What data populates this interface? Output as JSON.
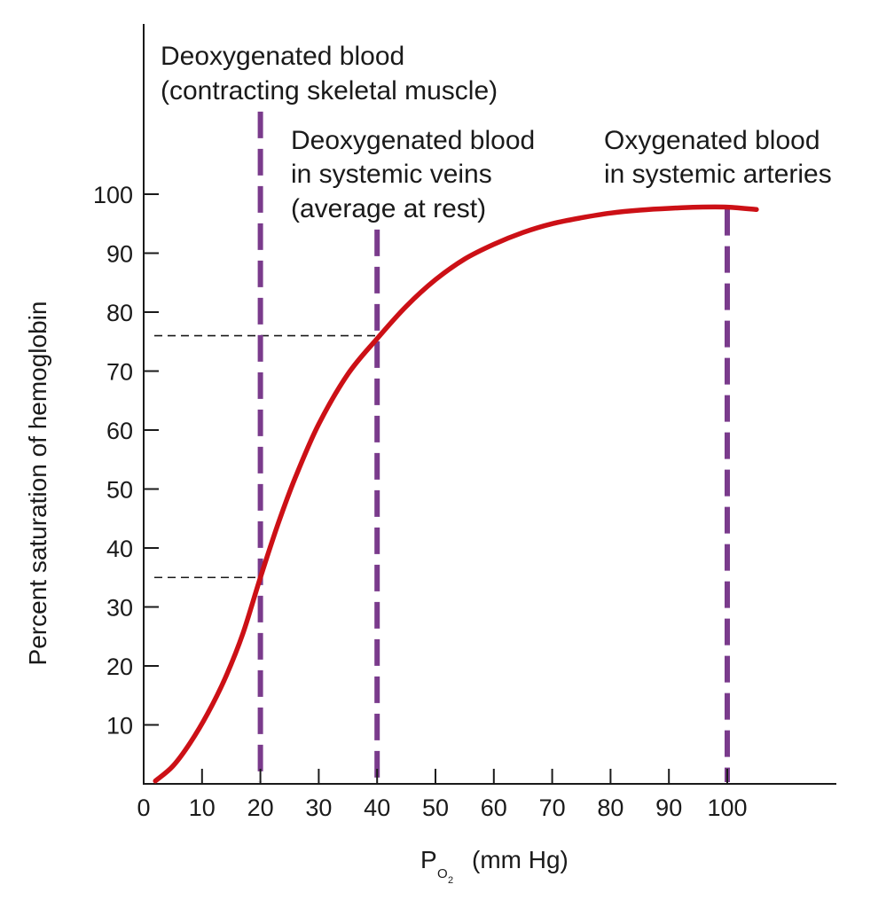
{
  "chart_data": {
    "type": "line",
    "title": "",
    "xlabel": {
      "main": "P",
      "subscript": "O",
      "subsubscript": "2",
      "unit": "(mm Hg)"
    },
    "ylabel": "Percent saturation of hemoglobin",
    "xlim": [
      0,
      120
    ],
    "ylim": [
      0,
      115
    ],
    "x_ticks": [
      0,
      10,
      20,
      30,
      40,
      50,
      60,
      70,
      80,
      90,
      100
    ],
    "x_tick_labels": [
      "0",
      "10",
      "20",
      "30",
      "40",
      "50",
      "60",
      "70",
      "80",
      "90",
      "100"
    ],
    "y_ticks": [
      10,
      20,
      30,
      40,
      50,
      60,
      70,
      80,
      90,
      100
    ],
    "y_tick_labels": [
      "10",
      "20",
      "30",
      "40",
      "50",
      "60",
      "70",
      "80",
      "90",
      "100"
    ],
    "grid": false,
    "series": [
      {
        "color": "#cc1016",
        "x": [
          2,
          5,
          8,
          11,
          14,
          17,
          20,
          23,
          26,
          30,
          35,
          40,
          45,
          50,
          55,
          60,
          65,
          70,
          75,
          80,
          85,
          90,
          95,
          100,
          105
        ],
        "y": [
          0.5,
          3,
          7,
          12,
          18,
          25.5,
          35,
          44,
          52,
          61,
          69.5,
          75.5,
          81,
          85.5,
          89,
          91.5,
          93.5,
          95,
          96,
          96.8,
          97.3,
          97.6,
          97.8,
          97.8,
          97.4
        ]
      }
    ],
    "reference_lines": [
      {
        "x": 20,
        "y_top": 114,
        "color": "#7a3b8c"
      },
      {
        "x": 40,
        "y_top": 94,
        "color": "#7a3b8c"
      },
      {
        "x": 100,
        "y_top": 97.5,
        "color": "#7a3b8c"
      }
    ],
    "level_lines": [
      {
        "y": 76,
        "x_end": 40,
        "color": "#1a1a1a"
      },
      {
        "y": 35,
        "x_end": 20,
        "color": "#1a1a1a"
      }
    ],
    "annotations": [
      {
        "lines": [
          "Deoxygenated blood",
          "(contracting skeletal muscle)"
        ]
      },
      {
        "lines": [
          "Deoxygenated blood",
          "in systemic veins",
          "(average at rest)"
        ]
      },
      {
        "lines": [
          "Oxygenated blood",
          "in systemic arteries"
        ]
      }
    ],
    "colors": {
      "curve": "#cc1016",
      "marker_lines": "#7a3b8c",
      "axis": "#1a1a1a"
    }
  }
}
